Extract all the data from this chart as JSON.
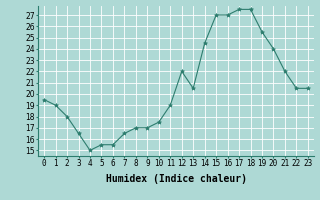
{
  "x": [
    0,
    1,
    2,
    3,
    4,
    5,
    6,
    7,
    8,
    9,
    10,
    11,
    12,
    13,
    14,
    15,
    16,
    17,
    18,
    19,
    20,
    21,
    22,
    23
  ],
  "y": [
    19.5,
    19.0,
    18.0,
    16.5,
    15.0,
    15.5,
    15.5,
    16.5,
    17.0,
    17.0,
    17.5,
    19.0,
    22.0,
    20.5,
    24.5,
    27.0,
    27.0,
    27.5,
    27.5,
    25.5,
    24.0,
    22.0,
    20.5,
    20.5
  ],
  "line_color": "#2d7d6e",
  "marker": "*",
  "marker_color": "#2d7d6e",
  "bg_color": "#aed9d5",
  "grid_color": "#ffffff",
  "xlabel": "Humidex (Indice chaleur)",
  "ylabel_ticks": [
    15,
    16,
    17,
    18,
    19,
    20,
    21,
    22,
    23,
    24,
    25,
    26,
    27
  ],
  "ylim": [
    14.5,
    27.8
  ],
  "xlim": [
    -0.5,
    23.5
  ],
  "tick_fontsize": 5.5,
  "xlabel_fontsize": 7,
  "title": ""
}
